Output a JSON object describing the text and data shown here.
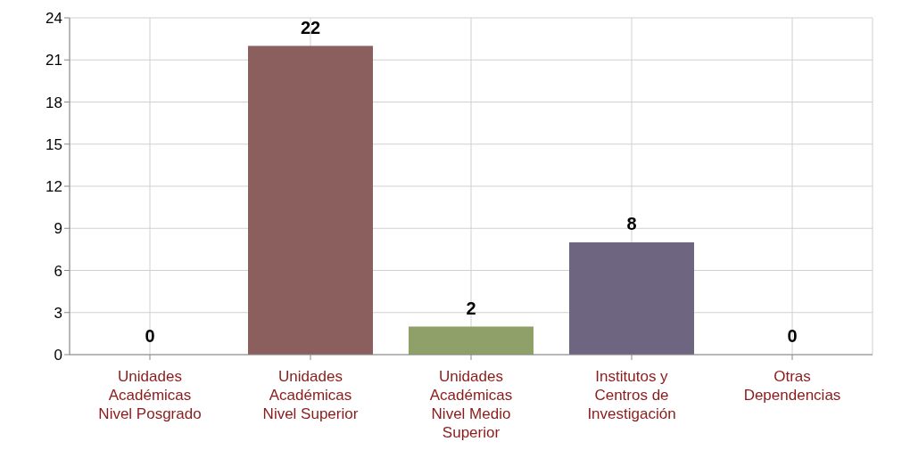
{
  "chart_data": {
    "type": "bar",
    "categories": [
      "Unidades Académicas Nivel Posgrado",
      "Unidades Académicas Nivel Superior",
      "Unidades Académicas Nivel Medio Superior",
      "Institutos y Centros de Investigación",
      "Otras Dependencias"
    ],
    "values": [
      0,
      22,
      2,
      8,
      0
    ],
    "colors": [
      "#7a5435",
      "#8b5f5d",
      "#8fa068",
      "#6e6580",
      "#2f5f66"
    ],
    "ylim": [
      0,
      24
    ],
    "yticks": [
      0,
      3,
      6,
      9,
      12,
      15,
      18,
      21,
      24
    ],
    "grid": true,
    "data_labels": true
  }
}
